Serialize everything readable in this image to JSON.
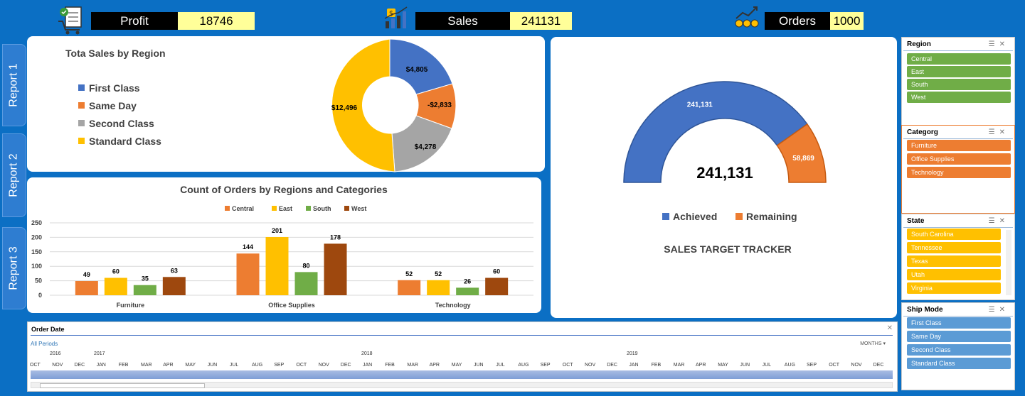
{
  "kpis": {
    "profit": {
      "label": "Profit",
      "value": "18746",
      "icon": "cart-checklist-icon"
    },
    "sales": {
      "label": "Sales",
      "value": "241131",
      "icon": "bar-growth-icon"
    },
    "orders": {
      "label": "Orders",
      "value": "1000",
      "icon": "coins-growth-icon"
    }
  },
  "nav": [
    "Report 1",
    "Report 2",
    "Report 3"
  ],
  "donut": {
    "title": "Tota Sales by Region",
    "legend": [
      "First Class",
      "Same Day",
      "Second Class",
      "Standard Class"
    ],
    "labels": [
      "$4,805",
      "-$2,833",
      "$4,278",
      "$12,496"
    ],
    "colors": [
      "#4472c4",
      "#ed7d31",
      "#a5a5a5",
      "#ffc000"
    ]
  },
  "chart_data": [
    {
      "type": "bar",
      "title": "Count of  Orders by Regions and Categories",
      "categories": [
        "Furniture",
        "Office Supplies",
        "Technology"
      ],
      "series": [
        {
          "name": "Central",
          "values": [
            49,
            144,
            52
          ],
          "color": "#ed7d31"
        },
        {
          "name": "East",
          "values": [
            60,
            201,
            52
          ],
          "color": "#ffc000"
        },
        {
          "name": "South",
          "values": [
            35,
            80,
            26
          ],
          "color": "#70ad47"
        },
        {
          "name": "West",
          "values": [
            63,
            178,
            60
          ],
          "color": "#9e480e"
        }
      ],
      "ylim": [
        0,
        250
      ],
      "yticks": [
        "0",
        "50",
        "100",
        "150",
        "200",
        "250"
      ],
      "legend": "top",
      "grid": true
    },
    {
      "type": "pie",
      "title": "SALES TARGET TRACKER",
      "center_label": "241,131",
      "slices": [
        {
          "name": "Achieved",
          "value": 241131,
          "label": "241,131",
          "color": "#4472c4"
        },
        {
          "name": "Remaining",
          "value": 58869,
          "label": "58,869",
          "color": "#ed7d31"
        }
      ],
      "legend": "bottom"
    }
  ],
  "slicers": {
    "region": {
      "title": "Region",
      "items": [
        "Central",
        "East",
        "South",
        "West"
      ],
      "color": "#70ad47"
    },
    "category": {
      "title": "Categorg",
      "items": [
        "Furniture",
        "Office Supplies",
        "Technology"
      ],
      "color": "#ed7d31"
    },
    "state": {
      "title": "State",
      "items": [
        "South Carolina",
        "Tennessee",
        "Texas",
        "Utah",
        "Virginia"
      ],
      "color": "#ffc000"
    },
    "shipmode": {
      "title": "Ship Mode",
      "items": [
        "First Class",
        "Same Day",
        "Second Class",
        "Standard Class"
      ],
      "color": "#5b9bd5"
    }
  },
  "timeline": {
    "title": "Order Date",
    "all_periods": "All Periods",
    "level": "MONTHS",
    "years": [
      "2016",
      "2017",
      "2018",
      "2019"
    ],
    "months": [
      "OCT",
      "NOV",
      "DEC",
      "JAN",
      "FEB",
      "MAR",
      "APR",
      "MAY",
      "JUN",
      "JUL",
      "AUG",
      "SEP",
      "OCT",
      "NOV",
      "DEC",
      "JAN",
      "FEB",
      "MAR",
      "APR",
      "MAY",
      "JUN",
      "JUL",
      "AUG",
      "SEP",
      "OCT",
      "NOV",
      "DEC",
      "JAN",
      "FEB",
      "MAR",
      "APR",
      "MAY",
      "JUN",
      "JUL",
      "AUG",
      "SEP",
      "OCT",
      "NOV",
      "DEC"
    ]
  }
}
